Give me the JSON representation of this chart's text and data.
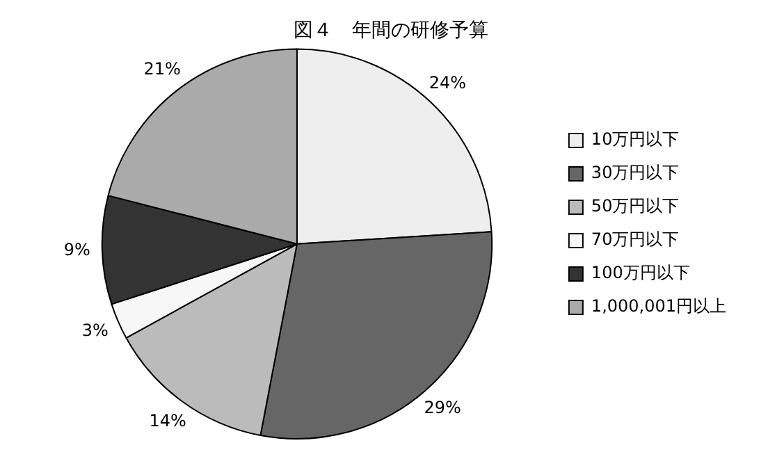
{
  "chart_data": {
    "type": "pie",
    "title": "図４　年間の研修予算",
    "categories": [
      "10万円以下",
      "30万円以下",
      "50万円以下",
      "70万円以下",
      "100万円以下",
      "1,000,001円以上"
    ],
    "values": [
      24,
      29,
      14,
      3,
      9,
      21
    ],
    "colors": [
      "#eeeeee",
      "#666666",
      "#bbbbbb",
      "#f7f7f7",
      "#333333",
      "#aaaaaa"
    ],
    "value_labels": [
      "24%",
      "29%",
      "14%",
      "3%",
      "9%",
      "21%"
    ],
    "legend": "right"
  }
}
